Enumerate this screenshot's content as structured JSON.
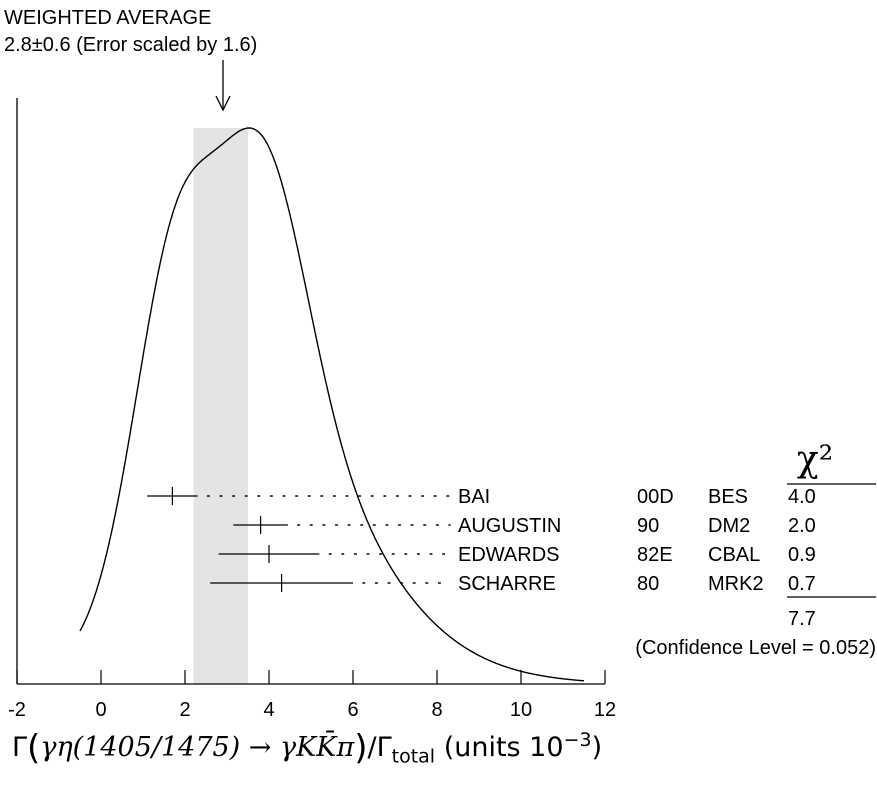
{
  "header": {
    "title": "WEIGHTED AVERAGE",
    "value": "2.8±0.6 (Error scaled by 1.6)"
  },
  "chart_data": {
    "type": "ideogram",
    "xlim": [
      -2,
      12
    ],
    "xticks": [
      "-2",
      "0",
      "2",
      "4",
      "6",
      "8",
      "10",
      "12"
    ],
    "weighted_average": {
      "mean": 2.8,
      "error": 0.6,
      "scale_factor": 1.6
    },
    "band": [
      2.2,
      3.5
    ],
    "chi2_header": "χ²",
    "measurements": [
      {
        "name": "BAI",
        "year": "00D",
        "experiment": "BES",
        "value": 1.7,
        "err_low": 0.6,
        "err_high": 0.6,
        "chi2": "4.0"
      },
      {
        "name": "AUGUSTIN",
        "year": "90",
        "experiment": "DM2",
        "value": 3.8,
        "err_low": 0.65,
        "err_high": 0.65,
        "chi2": "2.0"
      },
      {
        "name": "EDWARDS",
        "year": "82E",
        "experiment": "CBAL",
        "value": 4.0,
        "err_low": 1.2,
        "err_high": 1.2,
        "chi2": "0.9"
      },
      {
        "name": "SCHARRE",
        "year": "80",
        "experiment": "MRK2",
        "value": 4.3,
        "err_low": 1.7,
        "err_high": 1.7,
        "chi2": "0.7"
      }
    ],
    "chi2_total": "7.7",
    "confidence_level": "(Confidence Level = 0.052)"
  },
  "xaxis_label": {
    "gamma": "Γ",
    "reaction": "γη(1405/1475) → γKK̄π",
    "over": "/Γ",
    "sub": "total",
    "units": "(units 10",
    "exp": "−3",
    "close": ")"
  }
}
